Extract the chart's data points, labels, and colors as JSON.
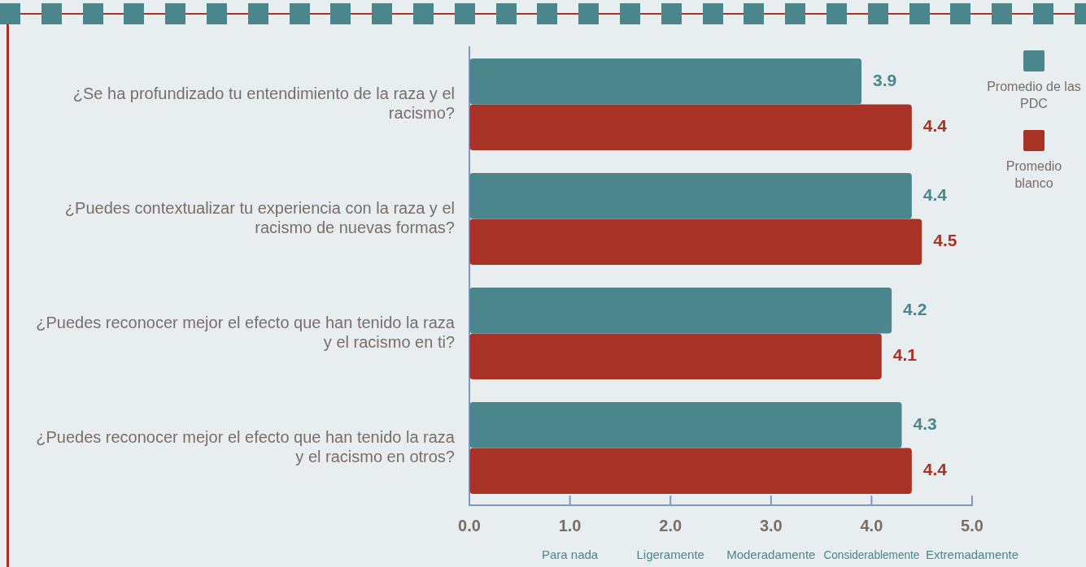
{
  "chart_data": {
    "type": "bar",
    "orientation": "horizontal",
    "categories": [
      "¿Se ha profundizado tu entendimiento de la raza y el racismo?",
      "¿Puedes contextualizar tu experiencia con la raza y el racismo de nuevas formas?",
      "¿Puedes reconocer mejor el efecto que han tenido la raza y el racismo en ti?",
      "¿Puedes reconocer mejor el efecto que han tenido la raza y el racismo en otros?"
    ],
    "series": [
      {
        "name": "Promedio de las PDC",
        "color": "#4a868c",
        "values": [
          3.9,
          4.4,
          4.2,
          4.3
        ]
      },
      {
        "name": "Promedio blanco",
        "color": "#a83225",
        "values": [
          4.4,
          4.5,
          4.1,
          4.4
        ]
      }
    ],
    "xlim": [
      0,
      5
    ],
    "xticks": [
      {
        "value": 0,
        "label": "0.0"
      },
      {
        "value": 1,
        "label": "1.0"
      },
      {
        "value": 2,
        "label": "2.0"
      },
      {
        "value": 3,
        "label": "3.0"
      },
      {
        "value": 4,
        "label": "4.0"
      },
      {
        "value": 5,
        "label": "5.0"
      }
    ],
    "annotations": [
      "Para nada",
      "Ligeramente",
      "Moderadamente",
      "Considerablemente",
      "Extremadamente"
    ],
    "data_labels": true,
    "legend": "top right",
    "grid": false
  }
}
